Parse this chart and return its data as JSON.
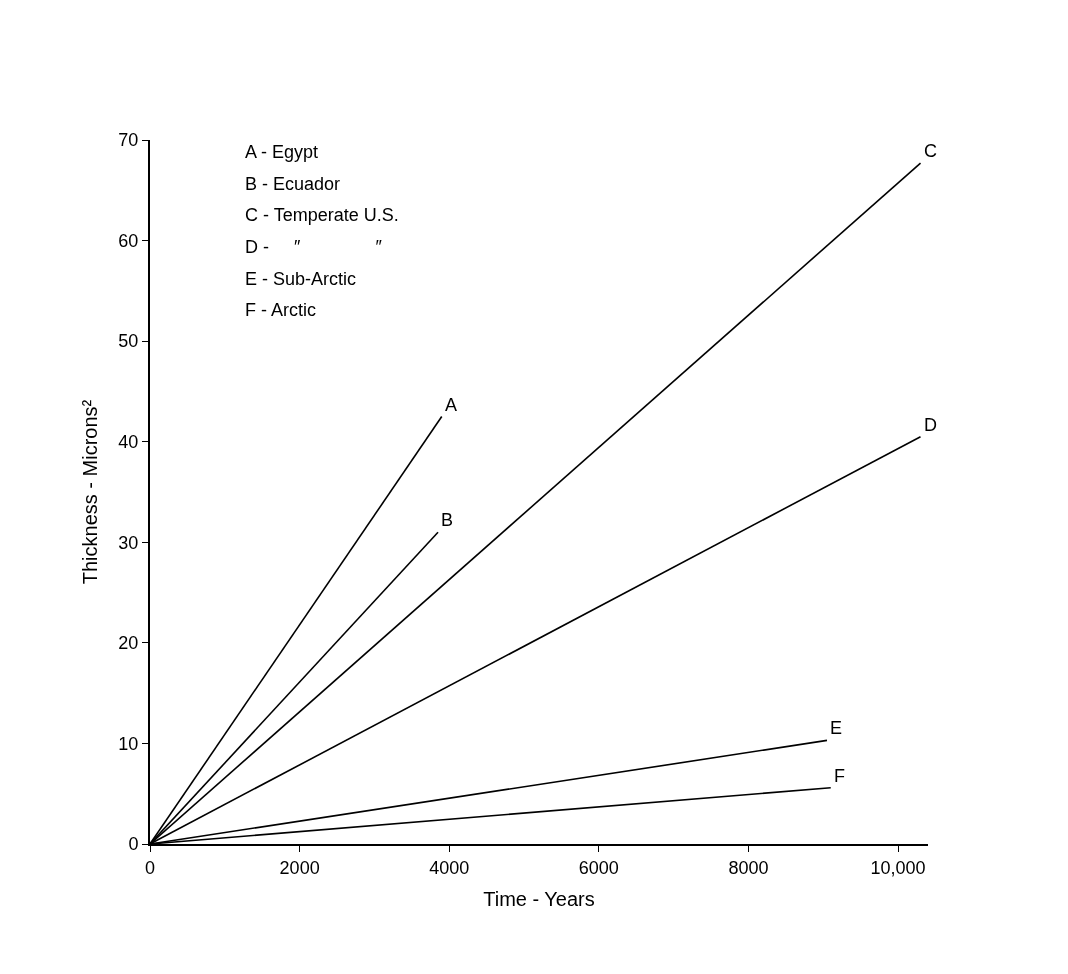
{
  "chart_data": {
    "type": "line",
    "xlabel": "Time - Years",
    "ylabel": "Thickness - Microns²",
    "xlim": [
      0,
      10400
    ],
    "ylim": [
      0,
      70
    ],
    "xticks": [
      0,
      2000,
      4000,
      6000,
      8000,
      {
        "value": 10000,
        "label": "10,000"
      }
    ],
    "yticks": [
      0,
      10,
      20,
      30,
      40,
      50,
      60,
      70
    ],
    "legend": false,
    "marker": "none",
    "line_style": "solid",
    "series": [
      {
        "name": "A",
        "color": "#000000",
        "x": [
          0,
          3900
        ],
        "values": [
          0,
          42.5
        ]
      },
      {
        "name": "B",
        "color": "#000000",
        "x": [
          0,
          3850
        ],
        "values": [
          0,
          31
        ]
      },
      {
        "name": "C",
        "color": "#000000",
        "x": [
          0,
          10300
        ],
        "values": [
          0,
          67.7
        ]
      },
      {
        "name": "D",
        "color": "#000000",
        "x": [
          0,
          10300
        ],
        "values": [
          0,
          40.5
        ]
      },
      {
        "name": "E",
        "color": "#000000",
        "x": [
          0,
          9050
        ],
        "values": [
          0,
          10.3
        ]
      },
      {
        "name": "F",
        "color": "#000000",
        "x": [
          0,
          9100
        ],
        "values": [
          0,
          5.6
        ]
      }
    ],
    "annotations": [
      "A - Egypt",
      "B - Ecuador",
      "C - Temperate U.S.",
      "D -     ″               ″",
      "E - Sub-Arctic",
      "F - Arctic"
    ]
  }
}
